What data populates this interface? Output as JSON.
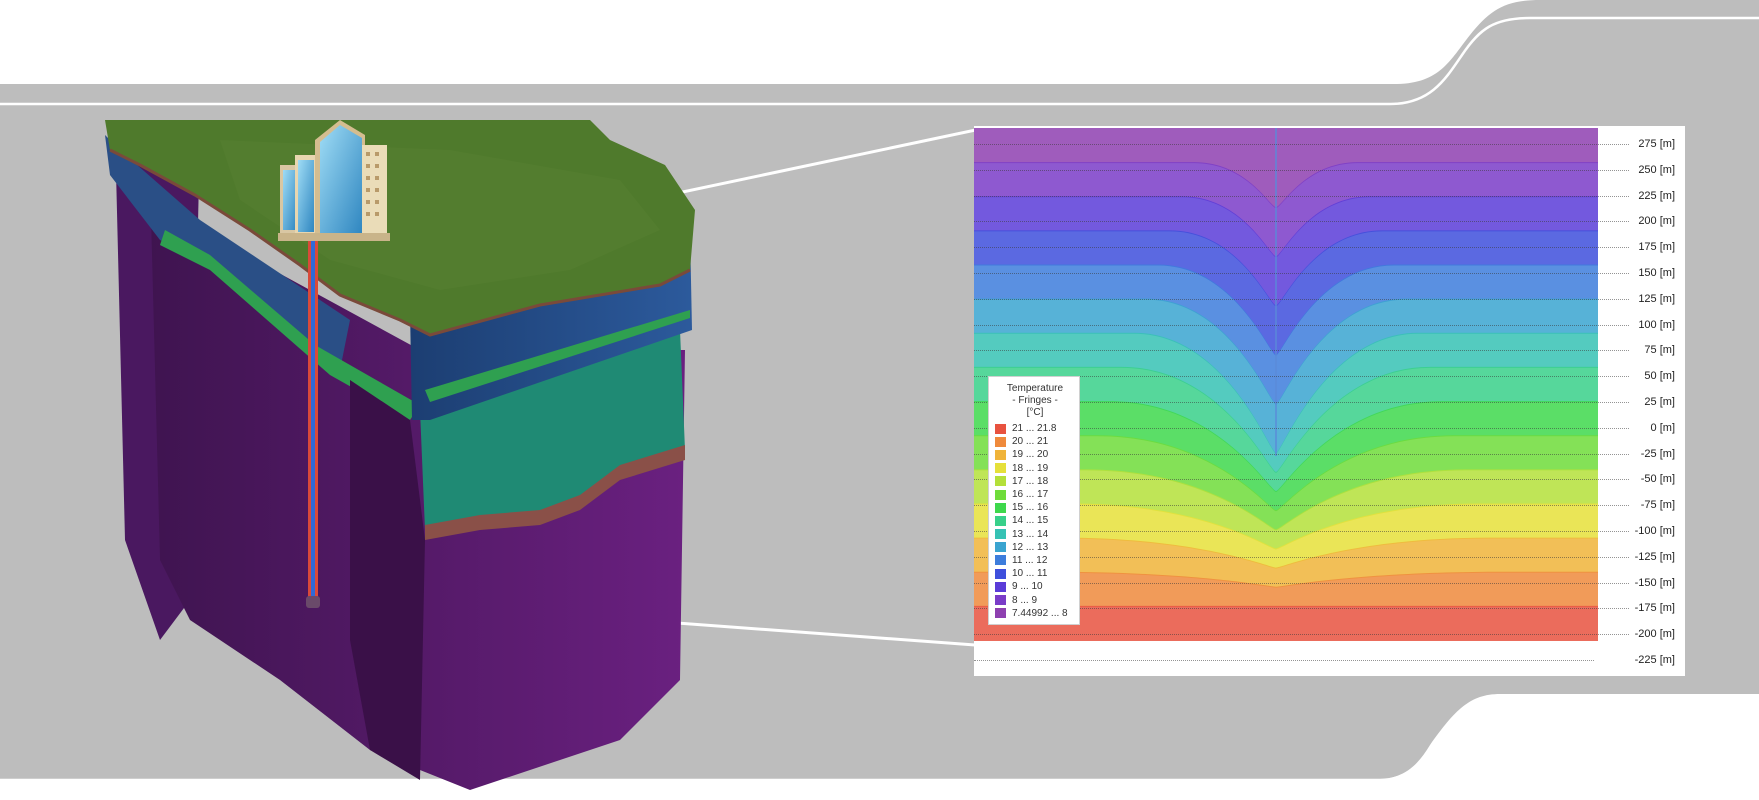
{
  "depth_axis": {
    "labels": [
      "275 [m]",
      "250 [m]",
      "225 [m]",
      "200 [m]",
      "175 [m]",
      "150 [m]",
      "125 [m]",
      "100 [m]",
      "75 [m]",
      "50 [m]",
      "25 [m]",
      "0 [m]",
      "-25 [m]",
      "-50 [m]",
      "-75 [m]",
      "-100 [m]",
      "-125 [m]",
      "-150 [m]",
      "-175 [m]",
      "-200 [m]",
      "-225 [m]"
    ]
  },
  "legend": {
    "title_line1": "Temperature",
    "title_line2": "- Fringes -",
    "title_line3": "[°C]",
    "items": [
      {
        "label": "21 ... 21.8",
        "color": "#e8523f"
      },
      {
        "label": "20 ... 21",
        "color": "#ef8a3c"
      },
      {
        "label": "19 ... 20",
        "color": "#f0b43a"
      },
      {
        "label": "18 ... 19",
        "color": "#e6e03a"
      },
      {
        "label": "17 ... 18",
        "color": "#b4e03a"
      },
      {
        "label": "16 ... 17",
        "color": "#6fdc3a"
      },
      {
        "label": "15 ... 16",
        "color": "#3ed84c"
      },
      {
        "label": "14 ... 15",
        "color": "#38d08a"
      },
      {
        "label": "13 ... 14",
        "color": "#36c2b4"
      },
      {
        "label": "12 ... 13",
        "color": "#3aa4d0"
      },
      {
        "label": "11 ... 12",
        "color": "#3d7ddc"
      },
      {
        "label": "10 ... 11",
        "color": "#3e4fdc"
      },
      {
        "label": "9 ... 10",
        "color": "#5a3cd8"
      },
      {
        "label": "8 ... 9",
        "color": "#7a3cc8"
      },
      {
        "label": "7.44992 ... 8",
        "color": "#8e40b0"
      }
    ]
  },
  "colors": {
    "background": "#ffffff",
    "frame_band": "#bdbdbd",
    "frame_line": "#ffffff",
    "terrain_top": "#4f7a2c",
    "blue_layer": "#254f8c",
    "teal_layer": "#1f8a74",
    "purple_layer": "#5b1d70",
    "borehole_pipe": "#d94a3a",
    "borehole_inner": "#2f6ad8"
  }
}
